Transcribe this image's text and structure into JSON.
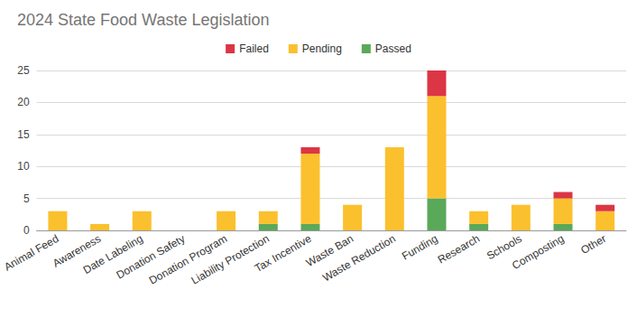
{
  "chart_data": {
    "type": "bar",
    "title": "2024 State Food Waste Legislation",
    "categories": [
      "Animal Feed",
      "Awareness",
      "Date Labeling",
      "Donation Safety",
      "Donation Program",
      "Liability Protection",
      "Tax Incentive",
      "Waste Ban",
      "Waste Reduction",
      "Funding",
      "Research",
      "Schools",
      "Composting",
      "Other"
    ],
    "series": [
      {
        "name": "Failed",
        "color": "#dc3545",
        "values": [
          0,
          0,
          0,
          0,
          0,
          0,
          1,
          0,
          0,
          4,
          0,
          0,
          1,
          1
        ]
      },
      {
        "name": "Pending",
        "color": "#fbc02d",
        "values": [
          3,
          1,
          3,
          0,
          3,
          2,
          11,
          4,
          13,
          16,
          2,
          4,
          4,
          3
        ]
      },
      {
        "name": "Passed",
        "color": "#5aa85a",
        "values": [
          0,
          0,
          0,
          0,
          0,
          1,
          1,
          0,
          0,
          5,
          1,
          0,
          1,
          0
        ]
      }
    ],
    "stacked": true,
    "legend": "top",
    "ylim": [
      0,
      25
    ],
    "yticks": [
      0,
      5,
      10,
      15,
      20,
      25
    ],
    "grid": true
  }
}
